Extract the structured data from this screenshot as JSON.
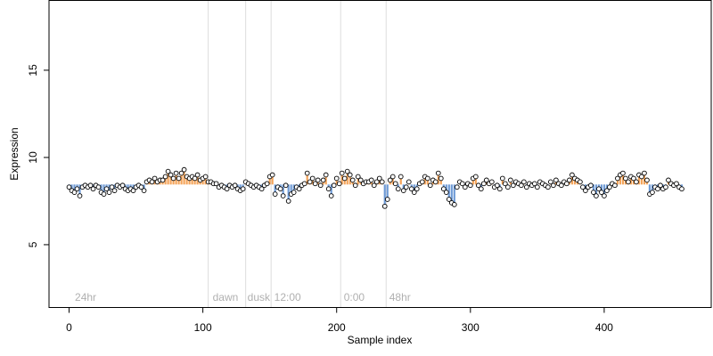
{
  "chart_data": {
    "type": "scatter",
    "title": "",
    "xlabel": "Sample index",
    "ylabel": "Expression",
    "xlim": [
      -15,
      480
    ],
    "ylim": [
      1.4,
      19.0
    ],
    "x_ticks": [
      0,
      100,
      200,
      300,
      400
    ],
    "y_ticks": [
      5,
      10,
      15
    ],
    "grid": false,
    "legend": "none",
    "colors": {
      "above_baseline": "#f4a45a",
      "below_baseline": "#6f9bd6",
      "point_fill": "#ffffff",
      "point_stroke": "#000000",
      "divider": "#dddddd",
      "annotation": "#b0b0b0"
    },
    "baseline": 8.45,
    "dividers": [
      104,
      132,
      151,
      203,
      237
    ],
    "annotations": [
      {
        "x": 3,
        "label": "24hr"
      },
      {
        "x": 106,
        "label": "dawn"
      },
      {
        "x": 132,
        "label": "dusk"
      },
      {
        "x": 152,
        "label": "12:00"
      },
      {
        "x": 204,
        "label": "0:00"
      },
      {
        "x": 238,
        "label": "48hr"
      }
    ],
    "series": [
      {
        "points": [
          [
            0,
            8.3
          ],
          [
            2,
            8.1
          ],
          [
            4,
            8.0
          ],
          [
            6,
            8.2
          ],
          [
            8,
            7.8
          ],
          [
            10,
            8.3
          ],
          [
            12,
            8.4
          ],
          [
            14,
            8.3
          ],
          [
            16,
            8.4
          ],
          [
            18,
            8.2
          ],
          [
            20,
            8.4
          ],
          [
            22,
            8.3
          ],
          [
            24,
            8.0
          ],
          [
            26,
            7.9
          ],
          [
            28,
            8.2
          ],
          [
            30,
            8.0
          ],
          [
            32,
            8.3
          ],
          [
            34,
            8.1
          ],
          [
            36,
            8.4
          ],
          [
            38,
            8.3
          ],
          [
            40,
            8.4
          ],
          [
            42,
            8.2
          ],
          [
            44,
            8.1
          ],
          [
            46,
            8.2
          ],
          [
            48,
            8.1
          ],
          [
            50,
            8.3
          ],
          [
            52,
            8.4
          ],
          [
            54,
            8.3
          ],
          [
            56,
            8.1
          ],
          [
            58,
            8.6
          ],
          [
            60,
            8.7
          ],
          [
            62,
            8.6
          ],
          [
            64,
            8.8
          ],
          [
            66,
            8.6
          ],
          [
            68,
            8.7
          ],
          [
            70,
            8.7
          ],
          [
            72,
            8.9
          ],
          [
            74,
            9.2
          ],
          [
            76,
            9.0
          ],
          [
            78,
            8.8
          ],
          [
            80,
            9.1
          ],
          [
            82,
            8.8
          ],
          [
            84,
            9.1
          ],
          [
            86,
            9.3
          ],
          [
            88,
            8.9
          ],
          [
            90,
            8.8
          ],
          [
            92,
            8.9
          ],
          [
            94,
            8.8
          ],
          [
            96,
            9.0
          ],
          [
            98,
            8.7
          ],
          [
            100,
            8.8
          ],
          [
            102,
            8.9
          ],
          [
            104,
            8.6
          ],
          [
            106,
            8.6
          ],
          [
            108,
            8.5
          ],
          [
            110,
            8.5
          ],
          [
            112,
            8.3
          ],
          [
            114,
            8.4
          ],
          [
            116,
            8.3
          ],
          [
            118,
            8.2
          ],
          [
            120,
            8.4
          ],
          [
            122,
            8.3
          ],
          [
            124,
            8.4
          ],
          [
            126,
            8.2
          ],
          [
            128,
            8.1
          ],
          [
            130,
            8.2
          ],
          [
            132,
            8.6
          ],
          [
            134,
            8.5
          ],
          [
            136,
            8.4
          ],
          [
            138,
            8.3
          ],
          [
            140,
            8.4
          ],
          [
            142,
            8.3
          ],
          [
            144,
            8.2
          ],
          [
            146,
            8.4
          ],
          [
            148,
            8.5
          ],
          [
            150,
            8.9
          ],
          [
            152,
            9.0
          ],
          [
            154,
            7.9
          ],
          [
            156,
            8.3
          ],
          [
            158,
            8.2
          ],
          [
            160,
            7.8
          ],
          [
            162,
            8.4
          ],
          [
            164,
            7.5
          ],
          [
            166,
            7.9
          ],
          [
            168,
            8.0
          ],
          [
            170,
            8.3
          ],
          [
            172,
            8.2
          ],
          [
            174,
            8.4
          ],
          [
            176,
            8.5
          ],
          [
            178,
            9.1
          ],
          [
            180,
            8.6
          ],
          [
            182,
            8.8
          ],
          [
            184,
            8.5
          ],
          [
            186,
            8.7
          ],
          [
            188,
            8.4
          ],
          [
            190,
            8.7
          ],
          [
            192,
            9.0
          ],
          [
            194,
            8.2
          ],
          [
            196,
            7.8
          ],
          [
            198,
            8.4
          ],
          [
            200,
            8.8
          ],
          [
            202,
            8.5
          ],
          [
            204,
            9.1
          ],
          [
            206,
            8.8
          ],
          [
            208,
            9.2
          ],
          [
            210,
            9.0
          ],
          [
            212,
            8.7
          ],
          [
            214,
            8.4
          ],
          [
            216,
            8.9
          ],
          [
            218,
            8.7
          ],
          [
            220,
            8.5
          ],
          [
            222,
            8.6
          ],
          [
            224,
            8.6
          ],
          [
            226,
            8.7
          ],
          [
            228,
            8.4
          ],
          [
            230,
            8.6
          ],
          [
            232,
            8.8
          ],
          [
            234,
            8.6
          ],
          [
            236,
            7.2
          ],
          [
            238,
            7.6
          ],
          [
            240,
            8.7
          ],
          [
            242,
            8.9
          ],
          [
            244,
            8.5
          ],
          [
            246,
            8.2
          ],
          [
            248,
            8.9
          ],
          [
            250,
            8.1
          ],
          [
            252,
            8.3
          ],
          [
            254,
            8.6
          ],
          [
            256,
            8.2
          ],
          [
            258,
            8.0
          ],
          [
            260,
            8.2
          ],
          [
            262,
            8.5
          ],
          [
            264,
            8.6
          ],
          [
            266,
            8.9
          ],
          [
            268,
            8.8
          ],
          [
            270,
            8.4
          ],
          [
            272,
            8.7
          ],
          [
            274,
            8.6
          ],
          [
            276,
            9.1
          ],
          [
            278,
            8.8
          ],
          [
            280,
            8.2
          ],
          [
            282,
            8.0
          ],
          [
            284,
            7.6
          ],
          [
            286,
            7.4
          ],
          [
            288,
            7.3
          ],
          [
            290,
            8.3
          ],
          [
            292,
            8.6
          ],
          [
            294,
            8.5
          ],
          [
            296,
            8.3
          ],
          [
            298,
            8.5
          ],
          [
            300,
            8.4
          ],
          [
            302,
            8.8
          ],
          [
            304,
            8.9
          ],
          [
            306,
            8.4
          ],
          [
            308,
            8.2
          ],
          [
            310,
            8.5
          ],
          [
            312,
            8.7
          ],
          [
            314,
            8.5
          ],
          [
            316,
            8.6
          ],
          [
            318,
            8.3
          ],
          [
            320,
            8.4
          ],
          [
            322,
            8.2
          ],
          [
            324,
            8.8
          ],
          [
            326,
            8.5
          ],
          [
            328,
            8.3
          ],
          [
            330,
            8.7
          ],
          [
            332,
            8.4
          ],
          [
            334,
            8.6
          ],
          [
            336,
            8.5
          ],
          [
            338,
            8.4
          ],
          [
            340,
            8.6
          ],
          [
            342,
            8.3
          ],
          [
            344,
            8.5
          ],
          [
            346,
            8.4
          ],
          [
            348,
            8.5
          ],
          [
            350,
            8.3
          ],
          [
            352,
            8.6
          ],
          [
            354,
            8.5
          ],
          [
            356,
            8.4
          ],
          [
            358,
            8.3
          ],
          [
            360,
            8.6
          ],
          [
            362,
            8.4
          ],
          [
            364,
            8.7
          ],
          [
            366,
            8.5
          ],
          [
            368,
            8.4
          ],
          [
            370,
            8.6
          ],
          [
            372,
            8.5
          ],
          [
            374,
            8.7
          ],
          [
            376,
            9.0
          ],
          [
            378,
            8.8
          ],
          [
            380,
            8.7
          ],
          [
            382,
            8.6
          ],
          [
            384,
            8.3
          ],
          [
            386,
            8.1
          ],
          [
            388,
            8.3
          ],
          [
            390,
            8.4
          ],
          [
            392,
            8.0
          ],
          [
            394,
            7.8
          ],
          [
            396,
            8.2
          ],
          [
            398,
            8.0
          ],
          [
            400,
            7.8
          ],
          [
            402,
            8.1
          ],
          [
            404,
            8.3
          ],
          [
            406,
            8.5
          ],
          [
            408,
            8.4
          ],
          [
            410,
            8.8
          ],
          [
            412,
            9.0
          ],
          [
            414,
            9.1
          ],
          [
            416,
            8.8
          ],
          [
            418,
            8.6
          ],
          [
            420,
            8.9
          ],
          [
            422,
            8.8
          ],
          [
            424,
            8.6
          ],
          [
            426,
            9.0
          ],
          [
            428,
            8.9
          ],
          [
            430,
            9.1
          ],
          [
            432,
            8.7
          ],
          [
            434,
            7.9
          ],
          [
            436,
            8.0
          ],
          [
            438,
            8.3
          ],
          [
            440,
            8.2
          ],
          [
            442,
            8.4
          ],
          [
            444,
            8.2
          ],
          [
            446,
            8.3
          ],
          [
            448,
            8.7
          ],
          [
            450,
            8.5
          ],
          [
            452,
            8.4
          ],
          [
            454,
            8.5
          ],
          [
            456,
            8.3
          ],
          [
            458,
            8.2
          ]
        ]
      }
    ]
  }
}
